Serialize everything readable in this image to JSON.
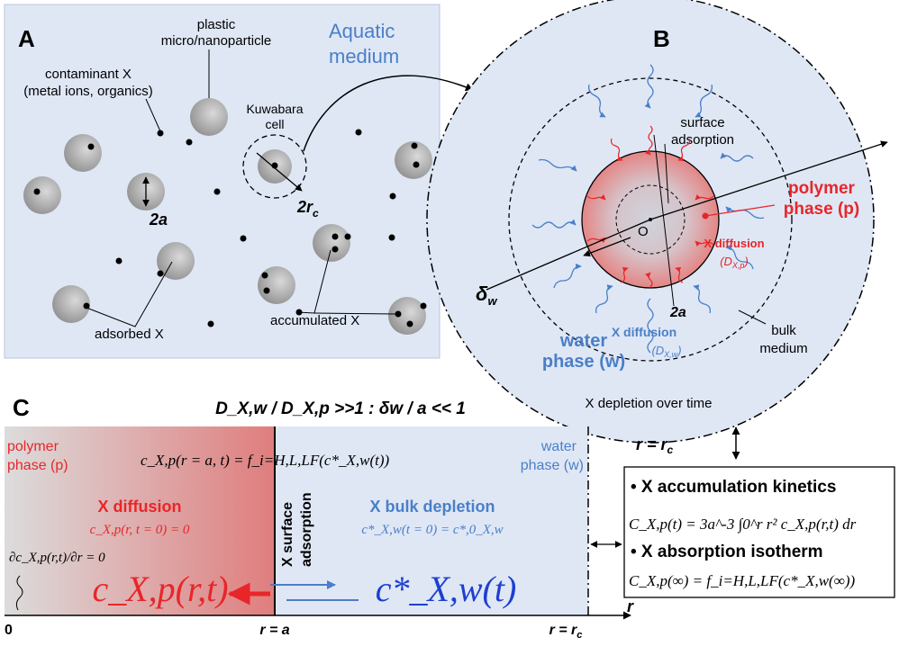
{
  "panel_a": {
    "letter": "A",
    "medium_line1": "Aquatic",
    "medium_line2": "medium",
    "plastic_line1": "plastic",
    "plastic_line2": "micro/nanoparticle",
    "contaminant_line1": "contaminant X",
    "contaminant_line2": "(metal ions, organics)",
    "kuwabara_line1": "Kuwabara",
    "kuwabara_line2": "cell",
    "two_a": "2a",
    "two_rc": "2r",
    "two_rc_sub": "c",
    "adsorbed": "adsorbed X",
    "accumulated": "accumulated X"
  },
  "panel_b": {
    "letter": "B",
    "surface_line1": "surface",
    "surface_line2": "adsorption",
    "polymer_line1": "polymer",
    "polymer_line2": "phase (p)",
    "x_diff_p": "X diffusion",
    "d_xp": "(D",
    "d_xp_sub": "X,p",
    "d_close": ")",
    "origin": "O",
    "delta_w": "δ",
    "delta_sub": "w",
    "two_a": "2a",
    "x_diff_w": "X diffusion",
    "d_xw": "(D",
    "d_xw_sub": "X,w",
    "water_line1": "water",
    "water_line2": "phase (w)",
    "bulk_line1": "bulk",
    "bulk_line2": "medium",
    "depletion": "X depletion over time",
    "r_eq_rc": "r = r",
    "r_sub": "c",
    "axis_r": "r"
  },
  "panel_c": {
    "letter": "C",
    "ratio": "D_X,w / D_X,p >>1 : δw / a << 1",
    "polymer_line1": "polymer",
    "polymer_line2": "phase (p)",
    "water_line1": "water",
    "water_line2": "phase (w)",
    "boundary_eq": "c_X,p(r = a, t) = f_i=H,L,LF(c*_X,w(t))",
    "x_diffusion": "X diffusion",
    "init_p": "c_X,p(r, t = 0) = 0",
    "surface_vertical1": "X surface",
    "surface_vertical2": "adsorption",
    "bulk_depletion": "X bulk depletion",
    "init_w": "c*_X,w(t = 0) = c*,0_X,w",
    "deriv_eq": "∂c_X,p(r,t)/∂r = 0",
    "big_cp": "c_X,p(r,t)",
    "big_cw": "c*_X,w(t)",
    "axis_zero": "0",
    "axis_r_a": "r = a",
    "axis_r_rc": "r = r",
    "axis_r": "r"
  },
  "box": {
    "accum_title": "• X accumulation kinetics",
    "accum_eq": "C_X,p(t) = 3a^-3 ∫0^r r² c_X,p(r,t) dr",
    "iso_title": "• X absorption isotherm",
    "iso_eq": "C_X,p(∞) = f_i=H,L,LF(c*_X,w(∞))"
  },
  "colors": {
    "panel_bg": "#dfe7f5",
    "blue_text": "#4a7fc8",
    "red_text": "#e8262a",
    "dark_blue": "#1f3fd0",
    "particle": "#a6a6a6"
  }
}
